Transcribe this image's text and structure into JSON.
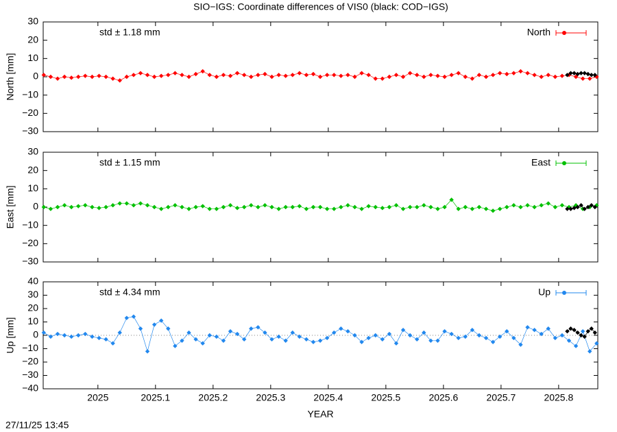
{
  "title": "SIO−IGS: Coordinate differences of VIS0 (black: COD−IGS)",
  "timestamp": "27/11/25 13:45",
  "chart_data": [
    {
      "type": "line",
      "ylabel": "North [mm]",
      "annotation": "std ± 1.18 mm",
      "legend": "top-right",
      "xlim": [
        2024.905,
        2025.868
      ],
      "xticks": [
        2025,
        2025.1,
        2025.2,
        2025.3,
        2025.4,
        2025.5,
        2025.6,
        2025.7,
        2025.8
      ],
      "ylim": [
        -30,
        30
      ],
      "yticks": [
        {
          "value": -30,
          "label": "−30"
        },
        {
          "value": -20,
          "label": "−20"
        },
        {
          "value": -10,
          "label": "−10"
        },
        0,
        10,
        20,
        30
      ],
      "series": [
        {
          "name": "North",
          "color": "#ff0000",
          "x": [
            2024.906,
            2024.918,
            2024.93,
            2024.942,
            2024.954,
            2024.966,
            2024.978,
            2024.99,
            2025.002,
            2025.014,
            2025.026,
            2025.038,
            2025.05,
            2025.062,
            2025.074,
            2025.086,
            2025.098,
            2025.11,
            2025.122,
            2025.134,
            2025.146,
            2025.158,
            2025.17,
            2025.182,
            2025.194,
            2025.206,
            2025.218,
            2025.23,
            2025.242,
            2025.254,
            2025.266,
            2025.278,
            2025.29,
            2025.302,
            2025.314,
            2025.326,
            2025.338,
            2025.35,
            2025.362,
            2025.374,
            2025.386,
            2025.398,
            2025.41,
            2025.422,
            2025.434,
            2025.446,
            2025.458,
            2025.47,
            2025.482,
            2025.494,
            2025.506,
            2025.518,
            2025.53,
            2025.542,
            2025.554,
            2025.566,
            2025.578,
            2025.59,
            2025.602,
            2025.614,
            2025.626,
            2025.638,
            2025.65,
            2025.662,
            2025.674,
            2025.686,
            2025.698,
            2025.71,
            2025.722,
            2025.734,
            2025.746,
            2025.758,
            2025.77,
            2025.782,
            2025.794,
            2025.806,
            2025.818,
            2025.83,
            2025.842,
            2025.854,
            2025.866
          ],
          "values": [
            1,
            0,
            -1,
            0,
            -0.5,
            0,
            0.5,
            0,
            0.5,
            0,
            -1,
            -2,
            0,
            1,
            2,
            1,
            0,
            0.5,
            1,
            2,
            1,
            0,
            1.5,
            3,
            1,
            0,
            1,
            0.5,
            2,
            1,
            0,
            1,
            1.5,
            0,
            1,
            0.5,
            1,
            2,
            1,
            1.5,
            0,
            1,
            1,
            0.5,
            1,
            0,
            2,
            1,
            -1,
            -1,
            0,
            1,
            0,
            2,
            1,
            0,
            1,
            0.5,
            0,
            1,
            2,
            0,
            -1,
            1,
            0,
            1,
            2,
            1.5,
            2,
            3,
            2,
            1,
            0,
            1,
            0,
            0.5,
            1,
            0,
            -1,
            -1,
            0
          ]
        },
        {
          "color": "#000000",
          "x": [
            2025.815,
            2025.821,
            2025.827,
            2025.833,
            2025.839,
            2025.845,
            2025.851,
            2025.857,
            2025.863
          ],
          "values": [
            1,
            2,
            2,
            1.5,
            2,
            2,
            1.5,
            1,
            1
          ]
        }
      ]
    },
    {
      "type": "line",
      "ylabel": "East [mm]",
      "annotation": "std ± 1.15 mm",
      "legend": "top-right",
      "xlim": [
        2024.905,
        2025.868
      ],
      "xticks": [
        2025,
        2025.1,
        2025.2,
        2025.3,
        2025.4,
        2025.5,
        2025.6,
        2025.7,
        2025.8
      ],
      "ylim": [
        -30,
        30
      ],
      "yticks": [
        {
          "value": -30,
          "label": "−30"
        },
        {
          "value": -20,
          "label": "−20"
        },
        {
          "value": -10,
          "label": "−10"
        },
        0,
        10,
        20,
        30
      ],
      "series": [
        {
          "name": "East",
          "color": "#00c000",
          "x": [
            2024.906,
            2024.918,
            2024.93,
            2024.942,
            2024.954,
            2024.966,
            2024.978,
            2024.99,
            2025.002,
            2025.014,
            2025.026,
            2025.038,
            2025.05,
            2025.062,
            2025.074,
            2025.086,
            2025.098,
            2025.11,
            2025.122,
            2025.134,
            2025.146,
            2025.158,
            2025.17,
            2025.182,
            2025.194,
            2025.206,
            2025.218,
            2025.23,
            2025.242,
            2025.254,
            2025.266,
            2025.278,
            2025.29,
            2025.302,
            2025.314,
            2025.326,
            2025.338,
            2025.35,
            2025.362,
            2025.374,
            2025.386,
            2025.398,
            2025.41,
            2025.422,
            2025.434,
            2025.446,
            2025.458,
            2025.47,
            2025.482,
            2025.494,
            2025.506,
            2025.518,
            2025.53,
            2025.542,
            2025.554,
            2025.566,
            2025.578,
            2025.59,
            2025.602,
            2025.614,
            2025.626,
            2025.638,
            2025.65,
            2025.662,
            2025.674,
            2025.686,
            2025.698,
            2025.71,
            2025.722,
            2025.734,
            2025.746,
            2025.758,
            2025.77,
            2025.782,
            2025.794,
            2025.806,
            2025.818,
            2025.83,
            2025.842,
            2025.854,
            2025.866
          ],
          "values": [
            0,
            -1,
            0,
            1,
            0,
            0.5,
            1,
            0,
            -0.5,
            0,
            1,
            2,
            2,
            1,
            2,
            1,
            0,
            -1,
            0,
            1,
            0,
            -1,
            0,
            0.5,
            -1,
            -1,
            0,
            1,
            -0.5,
            0,
            1,
            0,
            1,
            0,
            -1,
            0,
            0,
            0.5,
            -1,
            0,
            0,
            -1,
            -1,
            0,
            1,
            0,
            -1,
            0.5,
            0,
            -0.5,
            0,
            1,
            -1,
            0,
            0,
            1,
            0,
            -1,
            0,
            4,
            -1,
            0,
            -1,
            0,
            -1,
            -2,
            -1,
            0,
            1,
            0,
            1,
            0,
            1,
            2,
            0,
            1,
            0,
            1,
            -1,
            0,
            1
          ]
        },
        {
          "color": "#000000",
          "x": [
            2025.815,
            2025.821,
            2025.827,
            2025.833,
            2025.839,
            2025.845,
            2025.851,
            2025.857,
            2025.863
          ],
          "values": [
            -1,
            -1,
            -0.5,
            0,
            1,
            -1,
            0,
            1,
            0
          ]
        }
      ]
    },
    {
      "type": "line",
      "ylabel": "Up [mm]",
      "annotation": "std ± 4.34 mm",
      "legend": "top-right",
      "zero_line": true,
      "xlabel": "YEAR",
      "xlim": [
        2024.905,
        2025.868
      ],
      "xticks": [
        2025,
        2025.1,
        2025.2,
        2025.3,
        2025.4,
        2025.5,
        2025.6,
        2025.7,
        2025.8
      ],
      "ylim": [
        -40,
        40
      ],
      "yticks": [
        {
          "value": -40,
          "label": "−40"
        },
        {
          "value": -30,
          "label": "−30"
        },
        {
          "value": -20,
          "label": "−20"
        },
        {
          "value": -10,
          "label": "−10"
        },
        0,
        10,
        20,
        30,
        40
      ],
      "series": [
        {
          "name": "Up",
          "color": "#2288ee",
          "x": [
            2024.906,
            2024.918,
            2024.93,
            2024.942,
            2024.954,
            2024.966,
            2024.978,
            2024.99,
            2025.002,
            2025.014,
            2025.026,
            2025.038,
            2025.05,
            2025.062,
            2025.074,
            2025.086,
            2025.098,
            2025.11,
            2025.122,
            2025.134,
            2025.146,
            2025.158,
            2025.17,
            2025.182,
            2025.194,
            2025.206,
            2025.218,
            2025.23,
            2025.242,
            2025.254,
            2025.266,
            2025.278,
            2025.29,
            2025.302,
            2025.314,
            2025.326,
            2025.338,
            2025.35,
            2025.362,
            2025.374,
            2025.386,
            2025.398,
            2025.41,
            2025.422,
            2025.434,
            2025.446,
            2025.458,
            2025.47,
            2025.482,
            2025.494,
            2025.506,
            2025.518,
            2025.53,
            2025.542,
            2025.554,
            2025.566,
            2025.578,
            2025.59,
            2025.602,
            2025.614,
            2025.626,
            2025.638,
            2025.65,
            2025.662,
            2025.674,
            2025.686,
            2025.698,
            2025.71,
            2025.722,
            2025.734,
            2025.746,
            2025.758,
            2025.77,
            2025.782,
            2025.794,
            2025.806,
            2025.818,
            2025.83,
            2025.842,
            2025.854,
            2025.866
          ],
          "values": [
            2,
            -1,
            1,
            0,
            -1,
            0,
            1,
            -1,
            -2,
            -3,
            -6,
            2,
            13,
            14,
            5,
            -12,
            8,
            11,
            5,
            -8,
            -4,
            2,
            -3,
            -6,
            0,
            -1,
            -4,
            3,
            1,
            -3,
            5,
            6,
            2,
            -3,
            -1,
            -4,
            2,
            -1,
            -3,
            -5,
            -4,
            -2,
            2,
            5,
            3,
            0,
            -5,
            -2,
            0,
            -3,
            1,
            -6,
            4,
            0,
            -3,
            2,
            -4,
            -4,
            3,
            1,
            -2,
            -1,
            4,
            0,
            -2,
            -5,
            -1,
            3,
            -2,
            -7,
            6,
            4,
            1,
            5,
            -2,
            0,
            -4,
            -8,
            3,
            -12,
            -6
          ]
        },
        {
          "color": "#000000",
          "x": [
            2025.815,
            2025.821,
            2025.827,
            2025.833,
            2025.839,
            2025.845,
            2025.851,
            2025.857,
            2025.863
          ],
          "values": [
            3,
            5,
            4,
            2,
            0,
            -1,
            3,
            5,
            2
          ]
        }
      ]
    }
  ]
}
